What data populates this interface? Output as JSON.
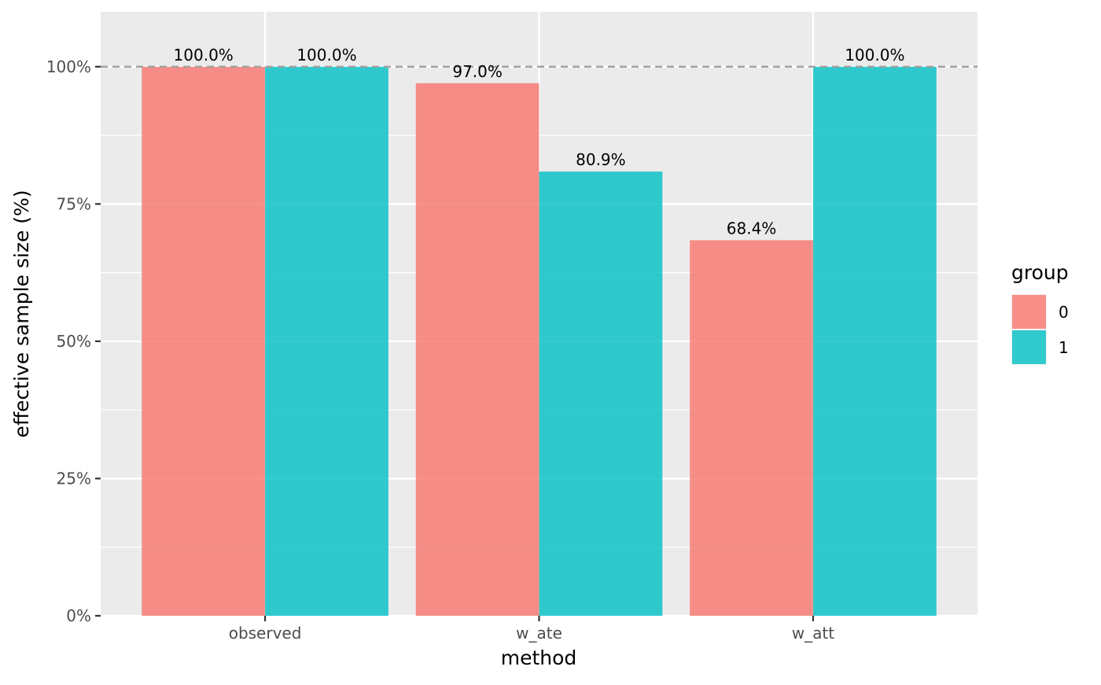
{
  "chart_data": {
    "type": "bar",
    "xlabel": "method",
    "ylabel": "effective sample size (%)",
    "categories": [
      "observed",
      "w_ate",
      "w_att"
    ],
    "series": [
      {
        "name": "0",
        "values": [
          100.0,
          97.0,
          68.4
        ],
        "color": "#F8766D"
      },
      {
        "name": "1",
        "values": [
          100.0,
          80.9,
          100.0
        ],
        "color": "#00BFC4"
      }
    ],
    "data_labels": [
      [
        "100.0%",
        "97.0%",
        "68.4%"
      ],
      [
        "100.0%",
        "80.9%",
        "100.0%"
      ]
    ],
    "ylim": [
      0,
      110
    ],
    "yticks": [
      0,
      25,
      50,
      75,
      100
    ],
    "ytick_labels": [
      "0%",
      "25%",
      "50%",
      "75%",
      "100%"
    ],
    "reference_line": {
      "y": 100,
      "style": "dashed",
      "color": "#A0A0A0"
    },
    "legend": {
      "title": "group",
      "placement": "right"
    },
    "grid": true,
    "panel_background": "#EBEBEB"
  }
}
